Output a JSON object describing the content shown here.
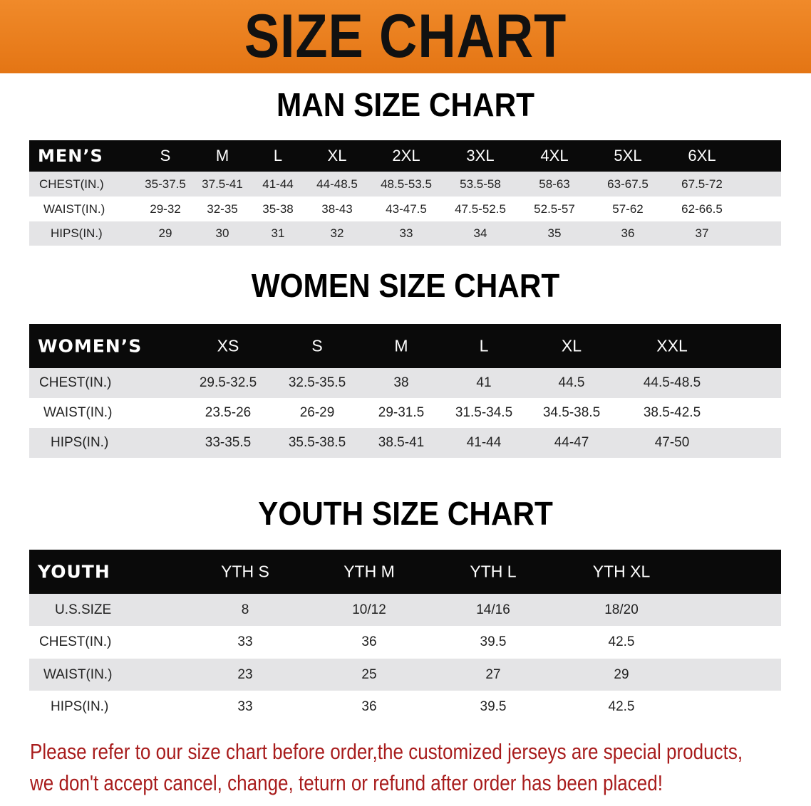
{
  "banner": {
    "title": "SIZE CHART",
    "color": "#e87b1e"
  },
  "men": {
    "title": "MAN SIZE CHART",
    "header": "MEN’S",
    "sizes": [
      "S",
      "M",
      "L",
      "XL",
      "2XL",
      "3XL",
      "4XL",
      "5XL",
      "6XL"
    ],
    "rows": [
      {
        "label": "CHEST(IN.)",
        "values": [
          "35-37.5",
          "37.5-41",
          "41-44",
          "44-48.5",
          "48.5-53.5",
          "53.5-58",
          "58-63",
          "63-67.5",
          "67.5-72"
        ]
      },
      {
        "label": "WAIST(IN.)",
        "values": [
          "29-32",
          "32-35",
          "35-38",
          "38-43",
          "43-47.5",
          "47.5-52.5",
          "52.5-57",
          "57-62",
          "62-66.5"
        ]
      },
      {
        "label": "HIPS(IN.)",
        "values": [
          "29",
          "30",
          "31",
          "32",
          "33",
          "34",
          "35",
          "36",
          "37"
        ]
      }
    ]
  },
  "women": {
    "title": "WOMEN SIZE CHART",
    "header": "WOMEN’S",
    "sizes": [
      "XS",
      "S",
      "M",
      "L",
      "XL",
      "XXL"
    ],
    "rows": [
      {
        "label": "CHEST(IN.)",
        "values": [
          "29.5-32.5",
          "32.5-35.5",
          "38",
          "41",
          "44.5",
          "44.5-48.5"
        ]
      },
      {
        "label": "WAIST(IN.)",
        "values": [
          "23.5-26",
          "26-29",
          "29-31.5",
          "31.5-34.5",
          "34.5-38.5",
          "38.5-42.5"
        ]
      },
      {
        "label": "HIPS(IN.)",
        "values": [
          "33-35.5",
          "35.5-38.5",
          "38.5-41",
          "41-44",
          "44-47",
          "47-50"
        ]
      }
    ]
  },
  "youth": {
    "title": "YOUTH SIZE CHART",
    "header": "YOUTH",
    "sizes": [
      "YTH S",
      "YTH M",
      "YTH L",
      "YTH XL"
    ],
    "rows": [
      {
        "label": "U.S.SIZE",
        "values": [
          "8",
          "10/12",
          "14/16",
          "18/20"
        ]
      },
      {
        "label": "CHEST(IN.)",
        "values": [
          "33",
          "36",
          "39.5",
          "42.5"
        ]
      },
      {
        "label": "WAIST(IN.)",
        "values": [
          "23",
          "25",
          "27",
          "29"
        ]
      },
      {
        "label": "HIPS(IN.)",
        "values": [
          "33",
          "36",
          "39.5",
          "42.5"
        ]
      }
    ]
  },
  "notice": {
    "line1": "Please refer to our size chart before order,the customized jerseys are special products,",
    "line2": "we don't accept cancel, change, teturn or refund after order has been placed!",
    "color": "#a81c1c"
  }
}
